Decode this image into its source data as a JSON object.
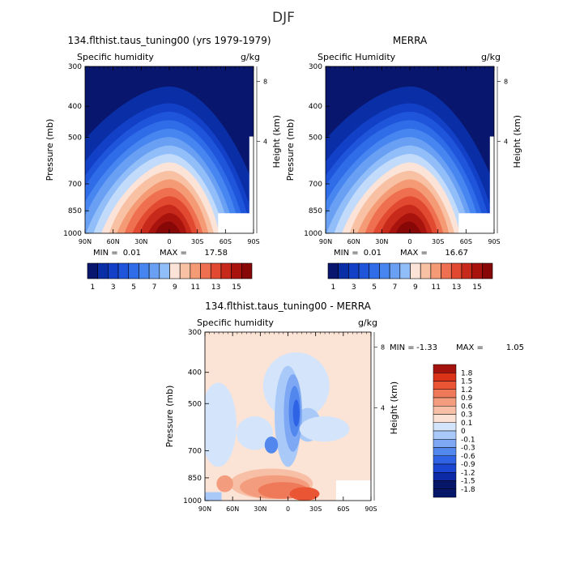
{
  "figure_title": "DJF",
  "colors": {
    "humidity_ramp": [
      "#08166e",
      "#0a2ea5",
      "#1240c7",
      "#1f55db",
      "#2f6ce8",
      "#4786f0",
      "#6aa0f4",
      "#91bdf8",
      "#c2dbfb",
      "#fbe3d8",
      "#f8c1a4",
      "#f49b76",
      "#ee7051",
      "#e14a31",
      "#c72a1a",
      "#a8130e",
      "#880707"
    ],
    "diff_ramp": [
      "#06176a",
      "#0c2aa6",
      "#1a46d2",
      "#2f63e6",
      "#5287ee",
      "#7ea8f4",
      "#a9c9f8",
      "#d4e5fb",
      "#fbe1d4",
      "#f7c0a6",
      "#f39d7e",
      "#ef7a5a",
      "#ea5534",
      "#da3318",
      "#a3120c"
    ]
  },
  "chart_data": [
    {
      "type": "heatmap",
      "title": "134.flthist.taus_tuning00 (yrs 1979-1979)",
      "field_label": "Specific humidity",
      "units": "g/kg",
      "ylabel": "Pressure (mb)",
      "ylabel_right": "Height (km)",
      "x_ticks": [
        "90N",
        "60N",
        "30N",
        "0",
        "30S",
        "60S",
        "90S"
      ],
      "y_ticks": [
        "300",
        "400",
        "500",
        "700",
        "850",
        "1000"
      ],
      "height_ticks": [
        "8",
        "4"
      ],
      "stats": {
        "min": "0.01",
        "max": "17.58"
      },
      "min_label": "MIN =",
      "max_label": "MAX =",
      "colorbar_labels": [
        "1",
        "3",
        "5",
        "7",
        "9",
        "11",
        "13",
        "15"
      ],
      "peak": {
        "lat": 0,
        "pressure": 1000,
        "value": 17.58
      },
      "ylim": [
        300,
        1000
      ],
      "xlim": [
        90,
        -90
      ]
    },
    {
      "type": "heatmap",
      "title": "MERRA",
      "field_label": "Specific Humidity",
      "units": "g/kg",
      "ylabel": "Pressure (mb)",
      "ylabel_right": "Height (km)",
      "x_ticks": [
        "90N",
        "60N",
        "30N",
        "0",
        "30S",
        "60S",
        "90S"
      ],
      "y_ticks": [
        "300",
        "400",
        "500",
        "700",
        "850",
        "1000"
      ],
      "height_ticks": [
        "8",
        "4"
      ],
      "stats": {
        "min": "0.01",
        "max": "16.67"
      },
      "min_label": "MIN =",
      "max_label": "MAX =",
      "colorbar_labels": [
        "1",
        "3",
        "5",
        "7",
        "9",
        "11",
        "13",
        "15"
      ],
      "peak": {
        "lat": 0,
        "pressure": 1000,
        "value": 16.67
      },
      "ylim": [
        300,
        1000
      ],
      "xlim": [
        90,
        -90
      ]
    },
    {
      "type": "heatmap",
      "title": "134.flthist.taus_tuning00 - MERRA",
      "field_label": "Specific humidity",
      "units": "g/kg",
      "ylabel": "Pressure (mb)",
      "ylabel_right": "Height (km)",
      "x_ticks": [
        "90N",
        "60N",
        "30N",
        "0",
        "30S",
        "60S",
        "90S"
      ],
      "y_ticks": [
        "300",
        "400",
        "500",
        "700",
        "850",
        "1000"
      ],
      "height_ticks": [
        "8",
        "4"
      ],
      "stats": {
        "min": "-1.33",
        "max": "1.05"
      },
      "min_label": "MIN =",
      "max_label": "MAX =",
      "colorbar_labels": [
        "1.8",
        "1.5",
        "1.2",
        "0.9",
        "0.6",
        "0.3",
        "0.1",
        "0",
        "-0.1",
        "-0.3",
        "-0.6",
        "-0.9",
        "-1.2",
        "-1.5",
        "-1.8"
      ],
      "ylim": [
        300,
        1000
      ],
      "xlim": [
        90,
        -90
      ]
    }
  ]
}
